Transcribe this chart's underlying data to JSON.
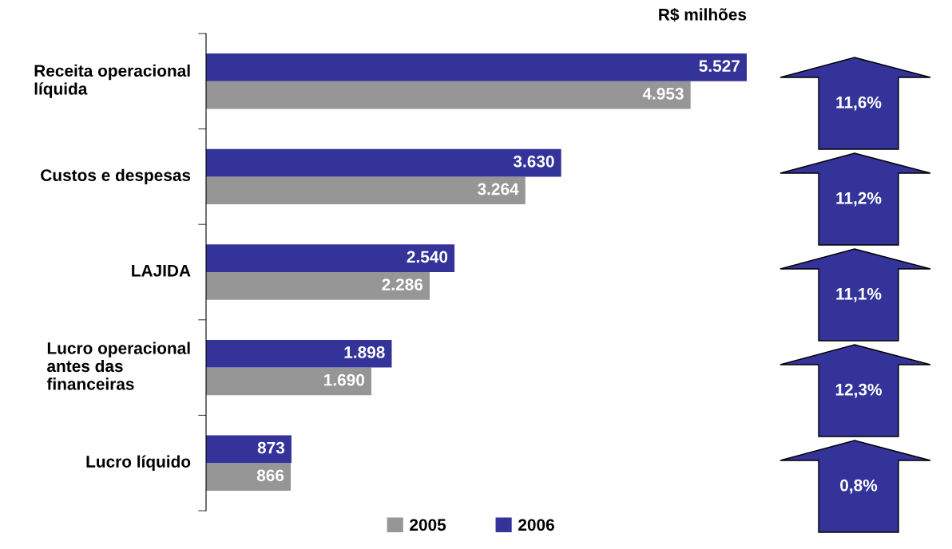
{
  "chart_data": {
    "type": "bar",
    "orientation": "horizontal",
    "categories": [
      "Receita operacional\nlíquida",
      "Custos e despesas",
      "LAJIDA",
      "Lucro operacional\nantes das\nfinanceiras",
      "Lucro líquido"
    ],
    "series": [
      {
        "name": "2005",
        "color": "#969696",
        "values": [
          4953,
          3264,
          2286,
          1690,
          866
        ],
        "value_labels": [
          "4.953",
          "3.264",
          "2.286",
          "1.690",
          "866"
        ]
      },
      {
        "name": "2006",
        "color": "#333399",
        "values": [
          5527,
          3630,
          2540,
          1898,
          873
        ],
        "value_labels": [
          "5.527",
          "3.630",
          "2.540",
          "1.898",
          "873"
        ]
      }
    ],
    "annotations": [
      "R$ milhões",
      "11,6%",
      "11,2%",
      "11,1%",
      "12,3%",
      "0,8%"
    ],
    "legend": "bottom",
    "grid": false
  }
}
